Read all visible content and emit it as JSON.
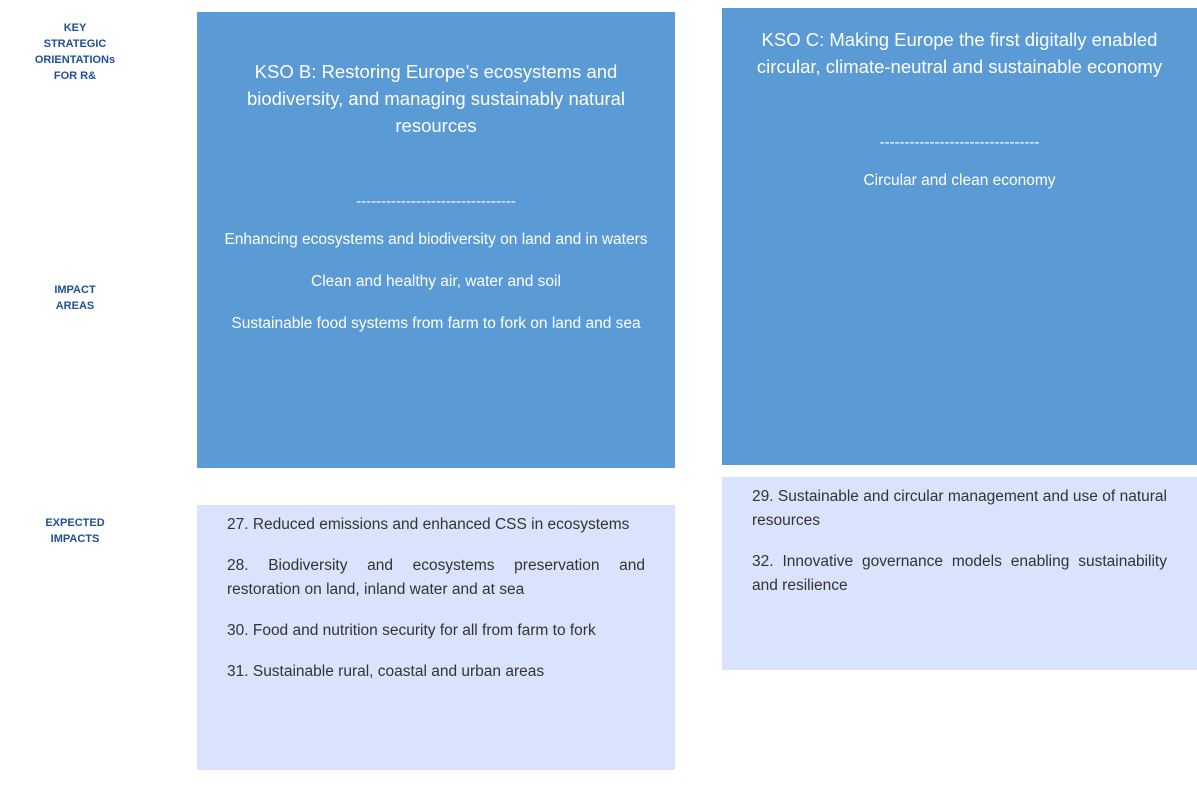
{
  "row_labels": [
    {
      "lines": [
        "KEY",
        "STRATEGIC",
        "ORIENTATIONs",
        "FOR R&"
      ]
    },
    {
      "lines": [
        "IMPACT",
        "AREAS"
      ]
    },
    {
      "lines": [
        "EXPECTED",
        "IMPACTS"
      ]
    }
  ],
  "columns": [
    {
      "title": "KSO B: Restoring Europe’s ecosystems and biodiversity, and managing sustainably natural resources",
      "separator": "--------------------------------",
      "impact_areas": [
        "Enhancing ecosystems and biodiversity on land and in waters",
        "Clean and healthy air, water and soil",
        "Sustainable food systems from farm to fork on land and sea"
      ],
      "expected_impacts": [
        "27. Reduced emissions and enhanced CSS in ecosystems",
        "28. Biodiversity and ecosystems preservation and restoration on land, inland water and at sea",
        "30. Food and nutrition security for all from farm to fork",
        "31. Sustainable rural, coastal and urban areas"
      ]
    },
    {
      "title": "KSO C: Making Europe the first digitally enabled circular, climate-neutral and sustainable economy",
      "separator": "--------------------------------",
      "impact_areas": [
        "Circular and clean economy"
      ],
      "expected_impacts": [
        "29. Sustainable and circular management and use of natural resources",
        "32. Innovative governance models enabling sustainability and resilience"
      ]
    }
  ]
}
